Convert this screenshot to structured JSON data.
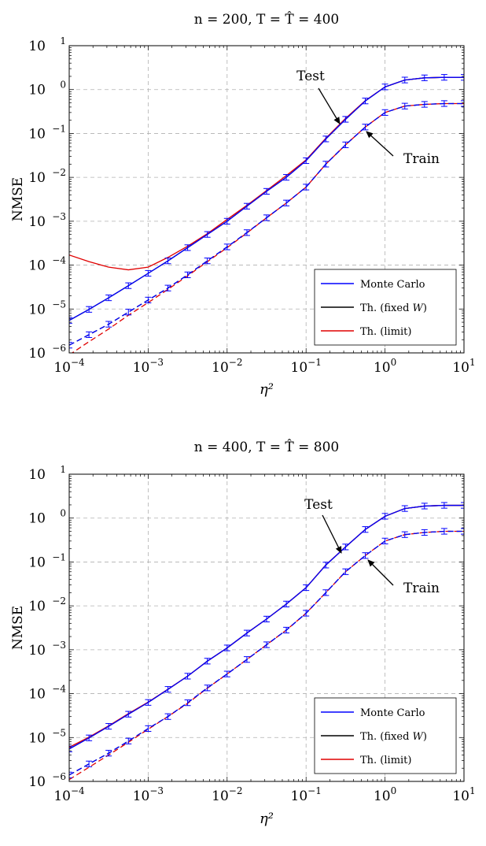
{
  "chart_data": [
    {
      "type": "line",
      "title": "n = 200, T = T̂ = 400",
      "title_parts": {
        "n": "200",
        "T": "400"
      },
      "xlabel": "η²",
      "ylabel": "NMSE",
      "x_scale": "log",
      "y_scale": "log",
      "xlim": [
        0.0001,
        10
      ],
      "ylim": [
        1e-06,
        10
      ],
      "grid": true,
      "legend_position": "bottom-right",
      "x_ticks": [
        {
          "base": "10",
          "exp": "−4"
        },
        {
          "base": "10",
          "exp": "−3"
        },
        {
          "base": "10",
          "exp": "−2"
        },
        {
          "base": "10",
          "exp": "−1"
        },
        {
          "base": "10",
          "exp": "0"
        },
        {
          "base": "10",
          "exp": "1"
        }
      ],
      "y_ticks": [
        {
          "base": "10",
          "exp": "−6"
        },
        {
          "base": "10",
          "exp": "−5"
        },
        {
          "base": "10",
          "exp": "−4"
        },
        {
          "base": "10",
          "exp": "−3"
        },
        {
          "base": "10",
          "exp": "−2"
        },
        {
          "base": "10",
          "exp": "−1"
        },
        {
          "base": "10",
          "exp": "0"
        },
        {
          "base": "10",
          "exp": "1"
        }
      ],
      "legend": [
        {
          "label": "Monte Carlo",
          "color": "#0000ff"
        },
        {
          "label": "Th. (fixed ",
          "label_italic": "W",
          "label_suffix": ")",
          "color": "#000000"
        },
        {
          "label": "Th. (limit)",
          "color": "#e00000"
        }
      ],
      "annotations": [
        {
          "text": "Test",
          "points_to": [
            0.2,
            0.14
          ]
        },
        {
          "text": "Train",
          "points_to": [
            0.4,
            0.115
          ]
        }
      ],
      "x": [
        0.0001,
        0.000178,
        0.000316,
        0.000562,
        0.001,
        0.00178,
        0.00316,
        0.00562,
        0.01,
        0.0178,
        0.0316,
        0.0562,
        0.1,
        0.178,
        0.316,
        0.562,
        1,
        1.78,
        3.16,
        5.62,
        10
      ],
      "series": [
        {
          "group": "Test",
          "model": "Monte Carlo",
          "color": "#0000ff",
          "dash": "solid",
          "errorbars": true,
          "values": [
            5.5e-06,
            9.8e-06,
            1.8e-05,
            3.4e-05,
            6.5e-05,
            0.000125,
            0.00025,
            0.0005,
            0.001,
            0.0022,
            0.0048,
            0.01,
            0.024,
            0.075,
            0.21,
            0.55,
            1.15,
            1.65,
            1.85,
            1.9,
            1.9
          ]
        },
        {
          "group": "Test",
          "model": "Th. (fixed W)",
          "color": "#000000",
          "dash": "solid",
          "values": [
            5.5e-06,
            9.8e-06,
            1.8e-05,
            3.4e-05,
            6.5e-05,
            0.000125,
            0.00025,
            0.0005,
            0.001,
            0.0022,
            0.0048,
            0.01,
            0.024,
            0.075,
            0.21,
            0.55,
            1.15,
            1.65,
            1.85,
            1.9,
            1.9
          ]
        },
        {
          "group": "Test",
          "model": "Th. (limit)",
          "color": "#e00000",
          "dash": "solid",
          "values": [
            0.00017,
            0.00012,
            9e-05,
            7.8e-05,
            9e-05,
            0.00015,
            0.00027,
            0.00052,
            0.0011,
            0.0023,
            0.005,
            0.011,
            0.025,
            0.078,
            0.22,
            0.56,
            1.15,
            1.65,
            1.85,
            1.9,
            1.9
          ]
        },
        {
          "group": "Train",
          "model": "Monte Carlo",
          "color": "#0000ff",
          "dash": "dashed",
          "errorbars": true,
          "values": [
            1.5e-06,
            2.6e-06,
            4.5e-06,
            8.5e-06,
            1.6e-05,
            3e-05,
            6e-05,
            0.000125,
            0.00026,
            0.00055,
            0.0012,
            0.0026,
            0.006,
            0.02,
            0.055,
            0.14,
            0.3,
            0.42,
            0.46,
            0.48,
            0.48
          ]
        },
        {
          "group": "Train",
          "model": "Th. (fixed W)",
          "color": "#000000",
          "dash": "dashed",
          "values": [
            1.5e-06,
            2.6e-06,
            4.5e-06,
            8.5e-06,
            1.6e-05,
            3e-05,
            6e-05,
            0.000125,
            0.00026,
            0.00055,
            0.0012,
            0.0026,
            0.006,
            0.02,
            0.055,
            0.14,
            0.3,
            0.42,
            0.46,
            0.48,
            0.48
          ]
        },
        {
          "group": "Train",
          "model": "Th. (limit)",
          "color": "#e00000",
          "dash": "dashed",
          "values": [
            9e-07,
            1.8e-06,
            3.5e-06,
            7.2e-06,
            1.4e-05,
            2.8e-05,
            5.7e-05,
            0.00012,
            0.00025,
            0.00054,
            0.0012,
            0.0026,
            0.006,
            0.02,
            0.055,
            0.14,
            0.3,
            0.42,
            0.46,
            0.48,
            0.48
          ]
        }
      ]
    },
    {
      "type": "line",
      "title": "n = 400, T = T̂ = 800",
      "title_parts": {
        "n": "400",
        "T": "800"
      },
      "xlabel": "η²",
      "ylabel": "NMSE",
      "x_scale": "log",
      "y_scale": "log",
      "xlim": [
        0.0001,
        10
      ],
      "ylim": [
        1e-06,
        10
      ],
      "grid": true,
      "legend_position": "bottom-right",
      "x_ticks": [
        {
          "base": "10",
          "exp": "−4"
        },
        {
          "base": "10",
          "exp": "−3"
        },
        {
          "base": "10",
          "exp": "−2"
        },
        {
          "base": "10",
          "exp": "−1"
        },
        {
          "base": "10",
          "exp": "0"
        },
        {
          "base": "10",
          "exp": "1"
        }
      ],
      "y_ticks": [
        {
          "base": "10",
          "exp": "−6"
        },
        {
          "base": "10",
          "exp": "−5"
        },
        {
          "base": "10",
          "exp": "−4"
        },
        {
          "base": "10",
          "exp": "−3"
        },
        {
          "base": "10",
          "exp": "−2"
        },
        {
          "base": "10",
          "exp": "−1"
        },
        {
          "base": "10",
          "exp": "0"
        },
        {
          "base": "10",
          "exp": "1"
        }
      ],
      "legend": [
        {
          "label": "Monte Carlo",
          "color": "#0000ff"
        },
        {
          "label": "Th. (fixed ",
          "label_italic": "W",
          "label_suffix": ")",
          "color": "#000000"
        },
        {
          "label": "Th. (limit)",
          "color": "#e00000"
        }
      ],
      "annotations": [
        {
          "text": "Test",
          "points_to": [
            0.2,
            0.08
          ]
        },
        {
          "text": "Train",
          "points_to": [
            0.45,
            0.1
          ]
        }
      ],
      "x": [
        0.0001,
        0.000178,
        0.000316,
        0.000562,
        0.001,
        0.00178,
        0.00316,
        0.00562,
        0.01,
        0.0178,
        0.0316,
        0.0562,
        0.1,
        0.178,
        0.316,
        0.562,
        1,
        1.78,
        3.16,
        5.62,
        10
      ],
      "series": [
        {
          "group": "Test",
          "model": "Monte Carlo",
          "color": "#0000ff",
          "dash": "solid",
          "errorbars": true,
          "values": [
            5.5e-06,
            9.8e-06,
            1.8e-05,
            3.4e-05,
            6.3e-05,
            0.000125,
            0.00025,
            0.00055,
            0.0011,
            0.0024,
            0.005,
            0.011,
            0.026,
            0.085,
            0.22,
            0.55,
            1.1,
            1.65,
            1.88,
            1.95,
            1.95
          ]
        },
        {
          "group": "Test",
          "model": "Th. (fixed W)",
          "color": "#000000",
          "dash": "solid",
          "values": [
            5.5e-06,
            9.8e-06,
            1.8e-05,
            3.4e-05,
            6.3e-05,
            0.000125,
            0.00025,
            0.00055,
            0.0011,
            0.0024,
            0.005,
            0.011,
            0.026,
            0.085,
            0.22,
            0.55,
            1.1,
            1.65,
            1.88,
            1.95,
            1.95
          ]
        },
        {
          "group": "Test",
          "model": "Th. (limit)",
          "color": "#e00000",
          "dash": "solid",
          "values": [
            6e-06,
            1.02e-05,
            1.85e-05,
            3.5e-05,
            6.4e-05,
            0.000126,
            0.00025,
            0.00055,
            0.0011,
            0.0024,
            0.005,
            0.011,
            0.026,
            0.086,
            0.22,
            0.55,
            1.1,
            1.65,
            1.88,
            1.95,
            1.95
          ]
        },
        {
          "group": "Train",
          "model": "Monte Carlo",
          "color": "#0000ff",
          "dash": "dashed",
          "errorbars": true,
          "values": [
            1.4e-06,
            2.5e-06,
            4.4e-06,
            8.3e-06,
            1.6e-05,
            3e-05,
            6.2e-05,
            0.000135,
            0.00028,
            0.0006,
            0.0013,
            0.0028,
            0.0068,
            0.02,
            0.06,
            0.14,
            0.3,
            0.42,
            0.47,
            0.5,
            0.5
          ]
        },
        {
          "group": "Train",
          "model": "Th. (fixed W)",
          "color": "#000000",
          "dash": "dashed",
          "values": [
            1.4e-06,
            2.5e-06,
            4.4e-06,
            8.3e-06,
            1.6e-05,
            3e-05,
            6.2e-05,
            0.000135,
            0.00028,
            0.0006,
            0.0013,
            0.0028,
            0.0068,
            0.02,
            0.06,
            0.14,
            0.3,
            0.42,
            0.47,
            0.5,
            0.5
          ]
        },
        {
          "group": "Train",
          "model": "Th. (limit)",
          "color": "#e00000",
          "dash": "dashed",
          "values": [
            1.1e-06,
            2.1e-06,
            4e-06,
            7.8e-06,
            1.55e-05,
            3e-05,
            6e-05,
            0.000133,
            0.00028,
            0.0006,
            0.0013,
            0.0028,
            0.0068,
            0.02,
            0.06,
            0.14,
            0.3,
            0.42,
            0.47,
            0.5,
            0.5
          ]
        }
      ]
    }
  ]
}
